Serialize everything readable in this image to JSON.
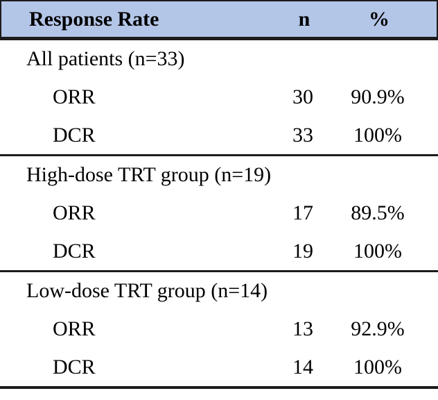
{
  "colors": {
    "header_bg": "#b4c6e7",
    "rule": "#1c1c1c",
    "text": "#000000"
  },
  "table": {
    "header": {
      "label": "Response Rate",
      "n": "n",
      "pct": "%"
    },
    "sections": [
      {
        "label": "All patients (n=33)",
        "rows": [
          {
            "metric": "ORR",
            "n": "30",
            "pct": "90.9%"
          },
          {
            "metric": "DCR",
            "n": "33",
            "pct": "100%"
          }
        ]
      },
      {
        "label": "High-dose TRT group (n=19)",
        "rows": [
          {
            "metric": "ORR",
            "n": "17",
            "pct": "89.5%"
          },
          {
            "metric": "DCR",
            "n": "19",
            "pct": "100%"
          }
        ]
      },
      {
        "label": "Low-dose TRT group (n=14)",
        "rows": [
          {
            "metric": "ORR",
            "n": "13",
            "pct": "92.9%"
          },
          {
            "metric": "DCR",
            "n": "14",
            "pct": "100%"
          }
        ]
      }
    ]
  }
}
